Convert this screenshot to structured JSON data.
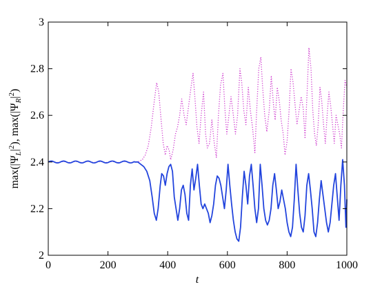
{
  "chart_data": {
    "type": "line",
    "title": "",
    "xlabel": "t",
    "ylabel_parts": {
      "a": "max(|Ψ",
      "b": "L",
      "c": "|",
      "d": "2",
      "e": "), max(|Ψ",
      "f": "R",
      "g": "|",
      "h": "2",
      "i": ")"
    },
    "xlim": [
      0,
      1000
    ],
    "ylim": [
      2,
      3
    ],
    "x_ticks": [
      0,
      200,
      400,
      600,
      800,
      1000
    ],
    "y_ticks": [
      2,
      2.2,
      2.4,
      2.6,
      2.8,
      3
    ],
    "x_tick_labels": [
      "0",
      "200",
      "400",
      "600",
      "800",
      "1000"
    ],
    "y_tick_labels": [
      "2",
      "2.2",
      "2.4",
      "2.6",
      "2.8",
      "3"
    ],
    "grid": false,
    "series": [
      {
        "style": "dotted",
        "color": "#cc33cc",
        "points": [
          [
            0,
            2.4
          ],
          [
            290,
            2.4
          ],
          [
            300,
            2.4
          ],
          [
            315,
            2.41
          ],
          [
            325,
            2.43
          ],
          [
            335,
            2.47
          ],
          [
            345,
            2.55
          ],
          [
            355,
            2.66
          ],
          [
            363,
            2.74
          ],
          [
            370,
            2.7
          ],
          [
            378,
            2.58
          ],
          [
            385,
            2.48
          ],
          [
            392,
            2.43
          ],
          [
            398,
            2.47
          ],
          [
            405,
            2.45
          ],
          [
            410,
            2.41
          ],
          [
            418,
            2.45
          ],
          [
            426,
            2.52
          ],
          [
            433,
            2.55
          ],
          [
            440,
            2.6
          ],
          [
            447,
            2.67
          ],
          [
            455,
            2.6
          ],
          [
            462,
            2.56
          ],
          [
            470,
            2.64
          ],
          [
            478,
            2.72
          ],
          [
            485,
            2.78
          ],
          [
            492,
            2.66
          ],
          [
            498,
            2.55
          ],
          [
            505,
            2.48
          ],
          [
            512,
            2.6
          ],
          [
            520,
            2.7
          ],
          [
            527,
            2.52
          ],
          [
            533,
            2.46
          ],
          [
            540,
            2.48
          ],
          [
            548,
            2.58
          ],
          [
            556,
            2.48
          ],
          [
            563,
            2.42
          ],
          [
            570,
            2.6
          ],
          [
            577,
            2.73
          ],
          [
            585,
            2.78
          ],
          [
            592,
            2.62
          ],
          [
            598,
            2.52
          ],
          [
            605,
            2.6
          ],
          [
            612,
            2.68
          ],
          [
            620,
            2.6
          ],
          [
            627,
            2.52
          ],
          [
            634,
            2.6
          ],
          [
            642,
            2.8
          ],
          [
            648,
            2.74
          ],
          [
            655,
            2.62
          ],
          [
            662,
            2.56
          ],
          [
            670,
            2.72
          ],
          [
            677,
            2.62
          ],
          [
            684,
            2.55
          ],
          [
            692,
            2.44
          ],
          [
            698,
            2.62
          ],
          [
            705,
            2.8
          ],
          [
            712,
            2.85
          ],
          [
            718,
            2.72
          ],
          [
            725,
            2.6
          ],
          [
            732,
            2.53
          ],
          [
            740,
            2.62
          ],
          [
            747,
            2.77
          ],
          [
            754,
            2.65
          ],
          [
            760,
            2.58
          ],
          [
            767,
            2.72
          ],
          [
            774,
            2.66
          ],
          [
            780,
            2.58
          ],
          [
            787,
            2.52
          ],
          [
            793,
            2.43
          ],
          [
            800,
            2.49
          ],
          [
            807,
            2.63
          ],
          [
            813,
            2.8
          ],
          [
            820,
            2.74
          ],
          [
            827,
            2.64
          ],
          [
            833,
            2.56
          ],
          [
            840,
            2.62
          ],
          [
            847,
            2.68
          ],
          [
            854,
            2.63
          ],
          [
            860,
            2.5
          ],
          [
            867,
            2.7
          ],
          [
            873,
            2.89
          ],
          [
            880,
            2.8
          ],
          [
            886,
            2.62
          ],
          [
            892,
            2.52
          ],
          [
            898,
            2.47
          ],
          [
            904,
            2.56
          ],
          [
            910,
            2.72
          ],
          [
            916,
            2.66
          ],
          [
            922,
            2.56
          ],
          [
            928,
            2.48
          ],
          [
            934,
            2.6
          ],
          [
            940,
            2.7
          ],
          [
            946,
            2.64
          ],
          [
            952,
            2.56
          ],
          [
            958,
            2.48
          ],
          [
            964,
            2.6
          ],
          [
            970,
            2.56
          ],
          [
            976,
            2.52
          ],
          [
            982,
            2.46
          ],
          [
            988,
            2.62
          ],
          [
            994,
            2.75
          ],
          [
            1000,
            2.72
          ]
        ]
      },
      {
        "style": "solid",
        "color": "#2244dd",
        "points": [
          [
            0,
            2.4
          ],
          [
            290,
            2.4
          ],
          [
            300,
            2.4
          ],
          [
            310,
            2.39
          ],
          [
            320,
            2.38
          ],
          [
            330,
            2.36
          ],
          [
            340,
            2.32
          ],
          [
            348,
            2.25
          ],
          [
            355,
            2.18
          ],
          [
            362,
            2.15
          ],
          [
            368,
            2.2
          ],
          [
            375,
            2.3
          ],
          [
            380,
            2.35
          ],
          [
            386,
            2.34
          ],
          [
            392,
            2.3
          ],
          [
            398,
            2.35
          ],
          [
            404,
            2.38
          ],
          [
            410,
            2.39
          ],
          [
            416,
            2.36
          ],
          [
            422,
            2.25
          ],
          [
            428,
            2.2
          ],
          [
            434,
            2.15
          ],
          [
            440,
            2.2
          ],
          [
            446,
            2.28
          ],
          [
            452,
            2.3
          ],
          [
            458,
            2.26
          ],
          [
            464,
            2.18
          ],
          [
            470,
            2.15
          ],
          [
            476,
            2.3
          ],
          [
            482,
            2.37
          ],
          [
            488,
            2.28
          ],
          [
            494,
            2.33
          ],
          [
            500,
            2.39
          ],
          [
            506,
            2.3
          ],
          [
            512,
            2.22
          ],
          [
            518,
            2.2
          ],
          [
            524,
            2.22
          ],
          [
            530,
            2.2
          ],
          [
            536,
            2.18
          ],
          [
            542,
            2.14
          ],
          [
            548,
            2.17
          ],
          [
            554,
            2.22
          ],
          [
            560,
            2.3
          ],
          [
            566,
            2.34
          ],
          [
            572,
            2.33
          ],
          [
            578,
            2.3
          ],
          [
            584,
            2.25
          ],
          [
            590,
            2.2
          ],
          [
            596,
            2.28
          ],
          [
            602,
            2.39
          ],
          [
            608,
            2.3
          ],
          [
            614,
            2.22
          ],
          [
            620,
            2.15
          ],
          [
            626,
            2.1
          ],
          [
            632,
            2.07
          ],
          [
            638,
            2.06
          ],
          [
            644,
            2.12
          ],
          [
            650,
            2.25
          ],
          [
            656,
            2.36
          ],
          [
            662,
            2.3
          ],
          [
            668,
            2.22
          ],
          [
            674,
            2.34
          ],
          [
            680,
            2.39
          ],
          [
            686,
            2.3
          ],
          [
            692,
            2.2
          ],
          [
            698,
            2.14
          ],
          [
            704,
            2.2
          ],
          [
            710,
            2.39
          ],
          [
            716,
            2.3
          ],
          [
            722,
            2.2
          ],
          [
            728,
            2.15
          ],
          [
            734,
            2.13
          ],
          [
            740,
            2.15
          ],
          [
            746,
            2.2
          ],
          [
            752,
            2.3
          ],
          [
            758,
            2.35
          ],
          [
            764,
            2.28
          ],
          [
            770,
            2.2
          ],
          [
            776,
            2.23
          ],
          [
            782,
            2.28
          ],
          [
            788,
            2.24
          ],
          [
            794,
            2.2
          ],
          [
            800,
            2.14
          ],
          [
            806,
            2.1
          ],
          [
            812,
            2.08
          ],
          [
            818,
            2.12
          ],
          [
            824,
            2.24
          ],
          [
            830,
            2.39
          ],
          [
            836,
            2.28
          ],
          [
            842,
            2.18
          ],
          [
            848,
            2.12
          ],
          [
            854,
            2.1
          ],
          [
            860,
            2.17
          ],
          [
            866,
            2.3
          ],
          [
            872,
            2.35
          ],
          [
            878,
            2.28
          ],
          [
            884,
            2.2
          ],
          [
            890,
            2.1
          ],
          [
            896,
            2.08
          ],
          [
            902,
            2.14
          ],
          [
            908,
            2.24
          ],
          [
            914,
            2.32
          ],
          [
            920,
            2.26
          ],
          [
            926,
            2.2
          ],
          [
            932,
            2.14
          ],
          [
            938,
            2.1
          ],
          [
            944,
            2.14
          ],
          [
            950,
            2.22
          ],
          [
            956,
            2.3
          ],
          [
            962,
            2.35
          ],
          [
            968,
            2.25
          ],
          [
            974,
            2.15
          ],
          [
            980,
            2.3
          ],
          [
            986,
            2.41
          ],
          [
            992,
            2.3
          ],
          [
            997,
            2.12
          ],
          [
            1000,
            2.24
          ]
        ]
      }
    ]
  }
}
